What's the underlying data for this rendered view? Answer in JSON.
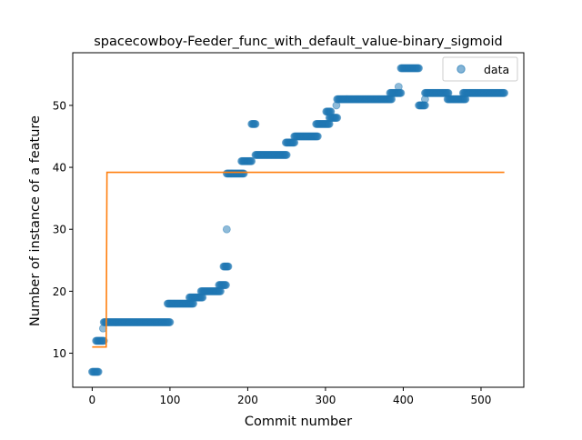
{
  "chart_data": {
    "type": "scatter",
    "title": "spacecowboy-Feeder_func_with_default_value-binary_sigmoid",
    "xlabel": "Commit number",
    "ylabel": "Number of instance of a feature",
    "xlim": [
      -25,
      555
    ],
    "ylim": [
      4.5,
      58.5
    ],
    "xticks": [
      0,
      100,
      200,
      300,
      400,
      500
    ],
    "yticks": [
      10,
      20,
      30,
      40,
      50
    ],
    "grid": false,
    "legend": {
      "position": "top-right",
      "entries": [
        "data"
      ]
    },
    "colors": {
      "data": "#1f77b4",
      "fit": "#ff7f0e"
    },
    "series": [
      {
        "name": "data",
        "kind": "scatter",
        "segments": [
          {
            "x_start": 0,
            "x_end": 8,
            "y": 7
          },
          {
            "x_start": 5,
            "x_end": 15,
            "y": 12
          },
          {
            "x_start": 14,
            "x_end": 14,
            "y": 14
          },
          {
            "x_start": 15,
            "x_end": 100,
            "y": 15
          },
          {
            "x_start": 97,
            "x_end": 130,
            "y": 18
          },
          {
            "x_start": 125,
            "x_end": 142,
            "y": 19
          },
          {
            "x_start": 140,
            "x_end": 165,
            "y": 20
          },
          {
            "x_start": 163,
            "x_end": 172,
            "y": 21
          },
          {
            "x_start": 169,
            "x_end": 175,
            "y": 24
          },
          {
            "x_start": 173,
            "x_end": 173,
            "y": 30
          },
          {
            "x_start": 173,
            "x_end": 195,
            "y": 39
          },
          {
            "x_start": 192,
            "x_end": 205,
            "y": 41
          },
          {
            "x_start": 205,
            "x_end": 210,
            "y": 47
          },
          {
            "x_start": 210,
            "x_end": 250,
            "y": 42
          },
          {
            "x_start": 249,
            "x_end": 260,
            "y": 44
          },
          {
            "x_start": 260,
            "x_end": 290,
            "y": 45
          },
          {
            "x_start": 288,
            "x_end": 305,
            "y": 47
          },
          {
            "x_start": 305,
            "x_end": 315,
            "y": 48
          },
          {
            "x_start": 301,
            "x_end": 307,
            "y": 49
          },
          {
            "x_start": 314,
            "x_end": 314,
            "y": 50
          },
          {
            "x_start": 315,
            "x_end": 385,
            "y": 51
          },
          {
            "x_start": 383,
            "x_end": 397,
            "y": 52
          },
          {
            "x_start": 394,
            "x_end": 394,
            "y": 53
          },
          {
            "x_start": 397,
            "x_end": 420,
            "y": 56
          },
          {
            "x_start": 420,
            "x_end": 428,
            "y": 50
          },
          {
            "x_start": 428,
            "x_end": 428,
            "y": 51
          },
          {
            "x_start": 428,
            "x_end": 458,
            "y": 52
          },
          {
            "x_start": 457,
            "x_end": 480,
            "y": 51
          },
          {
            "x_start": 477,
            "x_end": 530,
            "y": 52
          }
        ]
      },
      {
        "name": "fit",
        "kind": "line",
        "points": [
          {
            "x": 0,
            "y": 11
          },
          {
            "x": 18,
            "y": 11
          },
          {
            "x": 19,
            "y": 39.2
          },
          {
            "x": 530,
            "y": 39.2
          }
        ]
      }
    ]
  }
}
